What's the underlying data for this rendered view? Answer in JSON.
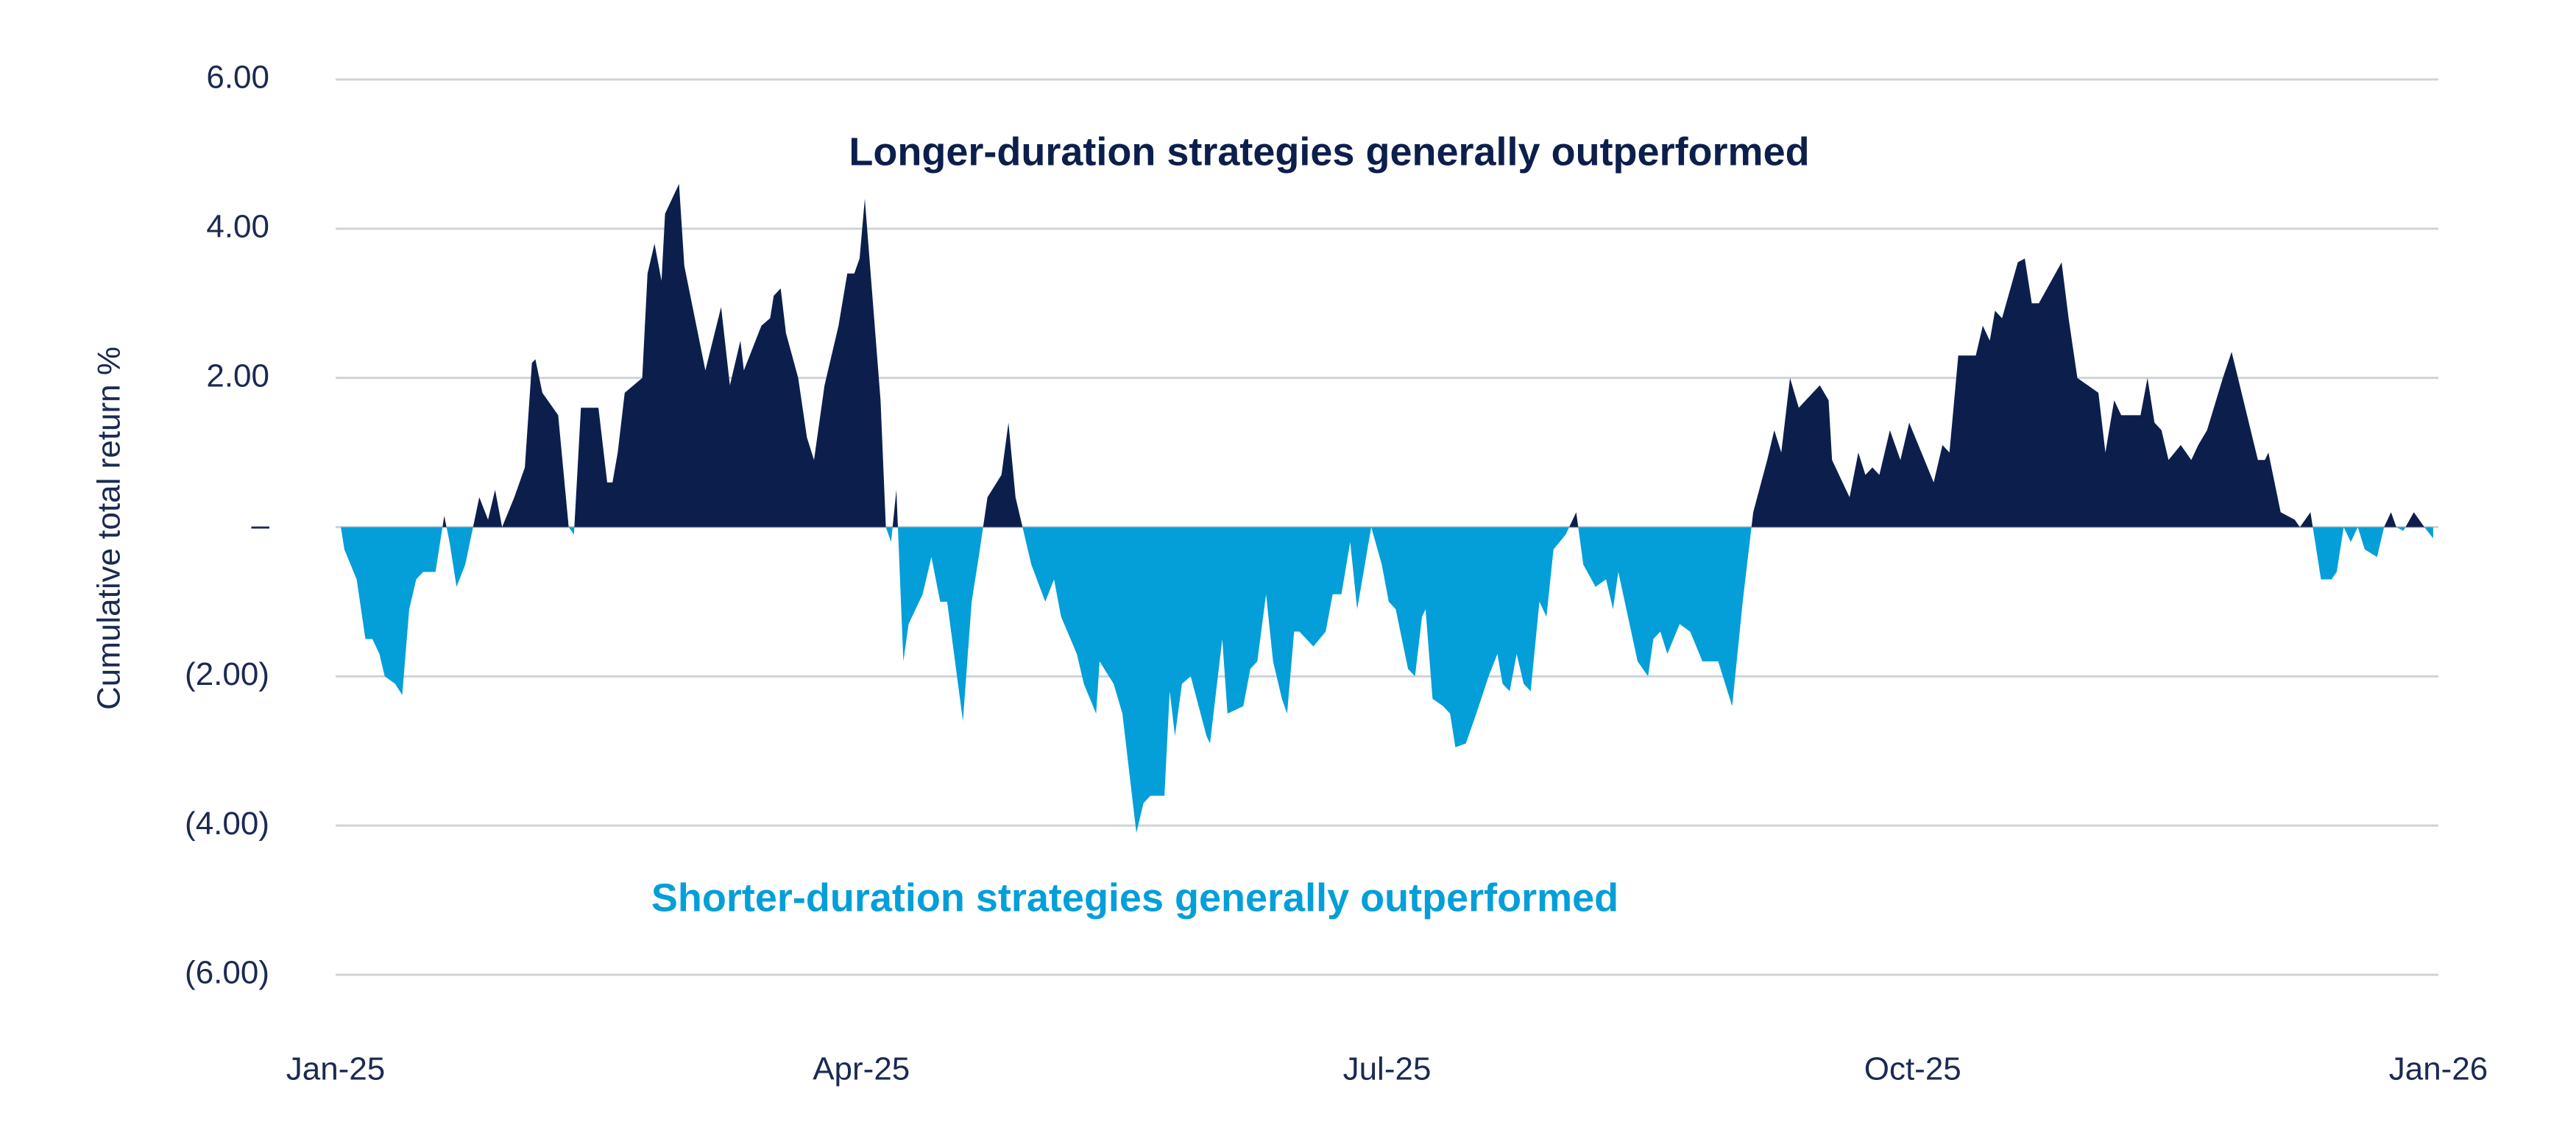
{
  "chart_data": {
    "type": "area",
    "y_label": "Cumulative total return %",
    "annotations": [
      "Longer-duration strategies generally outperformed",
      "Shorter-duration strategies generally outperformed"
    ],
    "positive_color": "#0c1f4c",
    "negative_color": "#049fd9",
    "xlim": [
      0,
      12
    ],
    "xticks": [
      {
        "value": 0,
        "label": "Jan-25"
      },
      {
        "value": 3,
        "label": "Apr-25"
      },
      {
        "value": 6,
        "label": "Jul-25"
      },
      {
        "value": 9,
        "label": "Oct-25"
      },
      {
        "value": 12,
        "label": "Jan-26"
      }
    ],
    "ylim": [
      -6,
      6
    ],
    "yticks": [
      {
        "value": 6,
        "label": "6.00"
      },
      {
        "value": 4,
        "label": "4.00"
      },
      {
        "value": 2,
        "label": "2.00"
      },
      {
        "value": 0,
        "label": "–"
      },
      {
        "value": -2,
        "label": "(2.00)"
      },
      {
        "value": -4,
        "label": "(4.00)"
      },
      {
        "value": -6,
        "label": "(6.00)"
      }
    ],
    "grid": true,
    "x": [
      0.03,
      0.05,
      0.12,
      0.17,
      0.21,
      0.25,
      0.28,
      0.34,
      0.38,
      0.42,
      0.46,
      0.5,
      0.57,
      0.62,
      0.65,
      0.69,
      0.74,
      0.82,
      0.87,
      0.91,
      0.95,
      1.02,
      1.08,
      1.12,
      1.14,
      1.18,
      1.27,
      1.33,
      1.36,
      1.4,
      1.5,
      1.55,
      1.58,
      1.61,
      1.65,
      1.75,
      1.78,
      1.82,
      1.86,
      1.88,
      1.96,
      1.99,
      2.05,
      2.11,
      2.2,
      2.25,
      2.31,
      2.33,
      2.43,
      2.48,
      2.5,
      2.54,
      2.57,
      2.64,
      2.69,
      2.73,
      2.79,
      2.87,
      2.92,
      2.96,
      2.99,
      3.02,
      3.11,
      3.14,
      3.17,
      3.2,
      3.24,
      3.27,
      3.35,
      3.4,
      3.45,
      3.49,
      3.58,
      3.63,
      3.67,
      3.72,
      3.8,
      3.84,
      3.88,
      3.92,
      3.97,
      4.05,
      4.1,
      4.14,
      4.23,
      4.27,
      4.34,
      4.36,
      4.44,
      4.49,
      4.53,
      4.57,
      4.61,
      4.65,
      4.73,
      4.76,
      4.79,
      4.83,
      4.88,
      4.97,
      4.99,
      5.06,
      5.09,
      5.18,
      5.22,
      5.26,
      5.31,
      5.35,
      5.4,
      5.43,
      5.47,
      5.5,
      5.58,
      5.65,
      5.69,
      5.74,
      5.79,
      5.83,
      5.91,
      5.97,
      6.01,
      6.05,
      6.12,
      6.16,
      6.2,
      6.22,
      6.26,
      6.32,
      6.36,
      6.39,
      6.45,
      6.51,
      6.58,
      6.63,
      6.66,
      6.7,
      6.74,
      6.78,
      6.82,
      6.87,
      6.91,
      6.95,
      7.02,
      7.08,
      7.12,
      7.19,
      7.25,
      7.29,
      7.32,
      7.43,
      7.49,
      7.52,
      7.56,
      7.6,
      7.67,
      7.73,
      7.8,
      7.85,
      7.89,
      7.97,
      8.03,
      8.09,
      8.17,
      8.21,
      8.25,
      8.3,
      8.35,
      8.43,
      8.47,
      8.52,
      8.54,
      8.6,
      8.64,
      8.69,
      8.73,
      8.77,
      8.81,
      8.87,
      8.93,
      8.98,
      9.12,
      9.17,
      9.21,
      9.26,
      9.36,
      9.4,
      9.44,
      9.47,
      9.51,
      9.6,
      9.64,
      9.68,
      9.72,
      9.85,
      9.89,
      9.94,
      10.06,
      10.1,
      10.15,
      10.19,
      10.3,
      10.34,
      10.38,
      10.42,
      10.46,
      10.53,
      10.59,
      10.63,
      10.68,
      10.77,
      10.82,
      10.97,
      11.01,
      11.03,
      11.1,
      11.18,
      11.21,
      11.27,
      11.33,
      11.39,
      11.42,
      11.46,
      11.5,
      11.54,
      11.58,
      11.65,
      11.69,
      11.73,
      11.76,
      11.8,
      11.86,
      11.92,
      11.97
    ],
    "values": [
      0,
      -0.3,
      -0.7,
      -1.5,
      -1.5,
      -1.7,
      -2.0,
      -2.1,
      -2.25,
      -1.1,
      -0.7,
      -0.6,
      -0.6,
      0.15,
      -0.2,
      -0.8,
      -0.5,
      0.4,
      0.1,
      0.5,
      0,
      0.4,
      0.8,
      2.2,
      2.25,
      1.8,
      1.5,
      0,
      -0.1,
      1.6,
      1.6,
      0.6,
      0.6,
      1.0,
      1.8,
      2.0,
      3.4,
      3.8,
      3.3,
      4.2,
      4.6,
      3.5,
      2.8,
      2.1,
      2.95,
      1.9,
      2.5,
      2.1,
      2.7,
      2.8,
      3.1,
      3.2,
      2.6,
      2.0,
      1.2,
      0.9,
      1.9,
      2.7,
      3.4,
      3.4,
      3.6,
      4.4,
      1.7,
      0,
      -0.2,
      0.5,
      -1.8,
      -1.3,
      -0.9,
      -0.4,
      -1.0,
      -1.0,
      -2.6,
      -1.0,
      -0.4,
      0.4,
      0.7,
      1.4,
      0.4,
      0,
      -0.5,
      -1.0,
      -0.7,
      -1.2,
      -1.7,
      -2.1,
      -2.5,
      -1.8,
      -2.1,
      -2.5,
      -3.3,
      -4.1,
      -3.7,
      -3.6,
      -3.6,
      -2.2,
      -2.8,
      -2.1,
      -2.0,
      -2.8,
      -2.9,
      -1.5,
      -2.5,
      -2.4,
      -1.9,
      -1.8,
      -0.9,
      -1.8,
      -2.3,
      -2.5,
      -1.4,
      -1.4,
      -1.6,
      -1.4,
      -0.9,
      -0.9,
      -0.2,
      -1.1,
      0,
      -0.5,
      -1.0,
      -1.1,
      -1.9,
      -2.0,
      -1.2,
      -1.1,
      -2.3,
      -2.4,
      -2.5,
      -2.95,
      -2.9,
      -2.5,
      -2.0,
      -1.7,
      -2.1,
      -2.2,
      -1.7,
      -2.1,
      -2.2,
      -1.0,
      -1.2,
      -0.3,
      -0.1,
      0.2,
      -0.5,
      -0.8,
      -0.7,
      -1.1,
      -0.6,
      -1.8,
      -2.0,
      -1.5,
      -1.4,
      -1.7,
      -1.3,
      -1.4,
      -1.8,
      -1.8,
      -1.8,
      -2.4,
      -1.0,
      0.2,
      0.9,
      1.3,
      1.0,
      2.0,
      1.6,
      1.8,
      1.9,
      1.7,
      0.9,
      0.6,
      0.4,
      1.0,
      0.7,
      0.8,
      0.7,
      1.3,
      0.9,
      1.4,
      0.6,
      1.1,
      1.0,
      2.3,
      2.3,
      2.7,
      2.5,
      2.9,
      2.8,
      3.55,
      3.6,
      3.0,
      3.0,
      3.55,
      2.8,
      2.0,
      1.8,
      1.0,
      1.7,
      1.5,
      1.5,
      2.0,
      1.4,
      1.3,
      0.9,
      1.1,
      0.9,
      1.1,
      1.3,
      2.0,
      2.35,
      0.9,
      0.9,
      1.0,
      0.2,
      0.1,
      0,
      0.2,
      -0.7,
      -0.7,
      -0.6,
      0,
      -0.2,
      0,
      -0.3,
      -0.4,
      0,
      0.2,
      0,
      -0.05,
      0.2,
      0,
      -0.15
    ]
  }
}
